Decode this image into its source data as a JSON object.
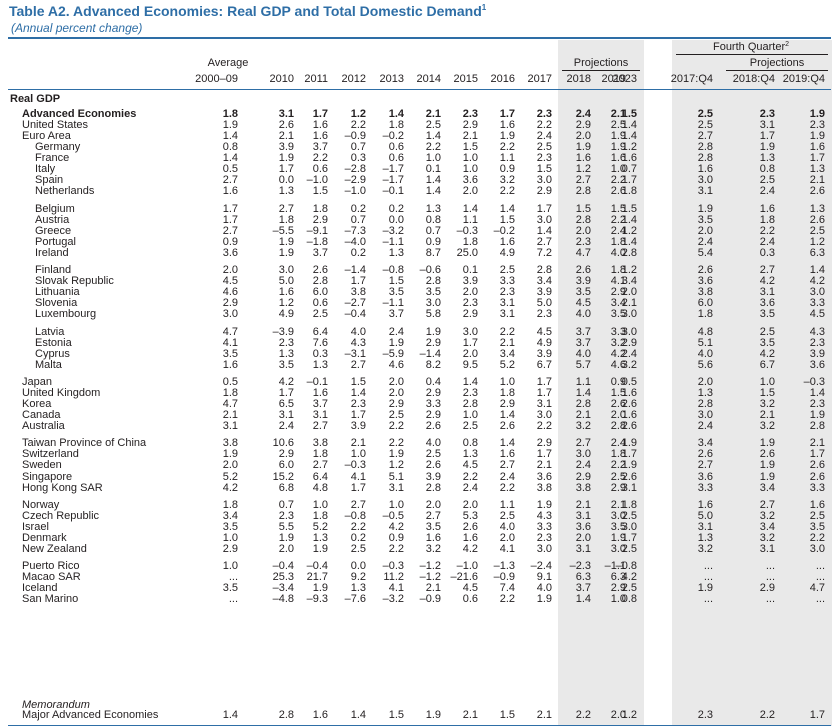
{
  "title": "Table A2. Advanced Economies: Real GDP and Total Domestic Demand",
  "title_note": "1",
  "subtitle": "(Annual percent change)",
  "header": {
    "average_top": "Average",
    "average_bottom": "2000–09",
    "years": [
      "2010",
      "2011",
      "2012",
      "2013",
      "2014",
      "2015",
      "2016",
      "2017"
    ],
    "projections_label": "Projections",
    "proj_years": [
      "2018",
      "2019",
      "2023"
    ],
    "fourth_quarter_label": "Fourth Quarter",
    "fourth_quarter_note": "2",
    "fq_projections_label": "Projections",
    "fq_years": [
      "2017:Q4",
      "2018:Q4",
      "2019:Q4"
    ]
  },
  "section_title": "Real GDP",
  "memorandum_label": "Memorandum",
  "rows": [
    {
      "label": "Advanced Economies",
      "bold": true,
      "values": [
        "1.8",
        "3.1",
        "1.7",
        "1.2",
        "1.4",
        "2.1",
        "2.3",
        "1.7",
        "2.3",
        "2.4",
        "2.1",
        "1.5",
        "2.5",
        "2.3",
        "1.9"
      ]
    },
    {
      "label": "United States",
      "values": [
        "1.9",
        "2.6",
        "1.6",
        "2.2",
        "1.8",
        "2.5",
        "2.9",
        "1.6",
        "2.2",
        "2.9",
        "2.5",
        "1.4",
        "2.5",
        "3.1",
        "2.3"
      ]
    },
    {
      "label": "Euro Area",
      "values": [
        "1.4",
        "2.1",
        "1.6",
        "–0.9",
        "–0.2",
        "1.4",
        "2.1",
        "1.9",
        "2.4",
        "2.0",
        "1.9",
        "1.4",
        "2.7",
        "1.7",
        "1.9"
      ]
    },
    {
      "label": "Germany",
      "indent": true,
      "values": [
        "0.8",
        "3.9",
        "3.7",
        "0.7",
        "0.6",
        "2.2",
        "1.5",
        "2.2",
        "2.5",
        "1.9",
        "1.9",
        "1.2",
        "2.8",
        "1.9",
        "1.6"
      ]
    },
    {
      "label": "France",
      "indent": true,
      "values": [
        "1.4",
        "1.9",
        "2.2",
        "0.3",
        "0.6",
        "1.0",
        "1.0",
        "1.1",
        "2.3",
        "1.6",
        "1.6",
        "1.6",
        "2.8",
        "1.3",
        "1.7"
      ]
    },
    {
      "label": "Italy",
      "indent": true,
      "values": [
        "0.5",
        "1.7",
        "0.6",
        "–2.8",
        "–1.7",
        "0.1",
        "1.0",
        "0.9",
        "1.5",
        "1.2",
        "1.0",
        "0.7",
        "1.6",
        "0.8",
        "1.3"
      ]
    },
    {
      "label": "Spain",
      "indent": true,
      "values": [
        "2.7",
        "0.0",
        "–1.0",
        "–2.9",
        "–1.7",
        "1.4",
        "3.6",
        "3.2",
        "3.0",
        "2.7",
        "2.2",
        "1.7",
        "3.0",
        "2.5",
        "2.1"
      ]
    },
    {
      "label": "Netherlands",
      "indent": true,
      "values": [
        "1.6",
        "1.3",
        "1.5",
        "–1.0",
        "–0.1",
        "1.4",
        "2.0",
        "2.2",
        "2.9",
        "2.8",
        "2.6",
        "1.8",
        "3.1",
        "2.4",
        "2.6"
      ]
    },
    {
      "label": "Belgium",
      "indent": true,
      "gap": true,
      "values": [
        "1.7",
        "2.7",
        "1.8",
        "0.2",
        "0.2",
        "1.3",
        "1.4",
        "1.4",
        "1.7",
        "1.5",
        "1.5",
        "1.5",
        "1.9",
        "1.6",
        "1.3"
      ]
    },
    {
      "label": "Austria",
      "indent": true,
      "values": [
        "1.7",
        "1.8",
        "2.9",
        "0.7",
        "0.0",
        "0.8",
        "1.1",
        "1.5",
        "3.0",
        "2.8",
        "2.2",
        "1.4",
        "3.5",
        "1.8",
        "2.6"
      ]
    },
    {
      "label": "Greece",
      "indent": true,
      "values": [
        "2.7",
        "–5.5",
        "–9.1",
        "–7.3",
        "–3.2",
        "0.7",
        "–0.3",
        "–0.2",
        "1.4",
        "2.0",
        "2.4",
        "1.2",
        "2.0",
        "2.2",
        "2.5"
      ]
    },
    {
      "label": "Portugal",
      "indent": true,
      "values": [
        "0.9",
        "1.9",
        "–1.8",
        "–4.0",
        "–1.1",
        "0.9",
        "1.8",
        "1.6",
        "2.7",
        "2.3",
        "1.8",
        "1.4",
        "2.4",
        "2.4",
        "1.2"
      ]
    },
    {
      "label": "Ireland",
      "indent": true,
      "values": [
        "3.6",
        "1.9",
        "3.7",
        "0.2",
        "1.3",
        "8.7",
        "25.0",
        "4.9",
        "7.2",
        "4.7",
        "4.0",
        "2.8",
        "5.4",
        "0.3",
        "6.3"
      ]
    },
    {
      "label": "Finland",
      "indent": true,
      "gap": true,
      "values": [
        "2.0",
        "3.0",
        "2.6",
        "–1.4",
        "–0.8",
        "–0.6",
        "0.1",
        "2.5",
        "2.8",
        "2.6",
        "1.8",
        "1.2",
        "2.6",
        "2.7",
        "1.4"
      ]
    },
    {
      "label": "Slovak Republic",
      "indent": true,
      "values": [
        "4.5",
        "5.0",
        "2.8",
        "1.7",
        "1.5",
        "2.8",
        "3.9",
        "3.3",
        "3.4",
        "3.9",
        "4.1",
        "3.4",
        "3.6",
        "4.2",
        "4.2"
      ]
    },
    {
      "label": "Lithuania",
      "indent": true,
      "values": [
        "4.6",
        "1.6",
        "6.0",
        "3.8",
        "3.5",
        "3.5",
        "2.0",
        "2.3",
        "3.9",
        "3.5",
        "2.9",
        "2.0",
        "3.8",
        "3.1",
        "3.0"
      ]
    },
    {
      "label": "Slovenia",
      "indent": true,
      "values": [
        "2.9",
        "1.2",
        "0.6",
        "–2.7",
        "–1.1",
        "3.0",
        "2.3",
        "3.1",
        "5.0",
        "4.5",
        "3.4",
        "2.1",
        "6.0",
        "3.6",
        "3.3"
      ]
    },
    {
      "label": "Luxembourg",
      "indent": true,
      "values": [
        "3.0",
        "4.9",
        "2.5",
        "–0.4",
        "3.7",
        "5.8",
        "2.9",
        "3.1",
        "2.3",
        "4.0",
        "3.5",
        "3.0",
        "1.8",
        "3.5",
        "4.5"
      ]
    },
    {
      "label": "Latvia",
      "indent": true,
      "gap": true,
      "values": [
        "4.7",
        "–3.9",
        "6.4",
        "4.0",
        "2.4",
        "1.9",
        "3.0",
        "2.2",
        "4.5",
        "3.7",
        "3.3",
        "3.0",
        "4.8",
        "2.5",
        "4.3"
      ]
    },
    {
      "label": "Estonia",
      "indent": true,
      "values": [
        "4.1",
        "2.3",
        "7.6",
        "4.3",
        "1.9",
        "2.9",
        "1.7",
        "2.1",
        "4.9",
        "3.7",
        "3.2",
        "2.9",
        "5.1",
        "3.5",
        "2.3"
      ]
    },
    {
      "label": "Cyprus",
      "indent": true,
      "values": [
        "3.5",
        "1.3",
        "0.3",
        "–3.1",
        "–5.9",
        "–1.4",
        "2.0",
        "3.4",
        "3.9",
        "4.0",
        "4.2",
        "2.4",
        "4.0",
        "4.2",
        "3.9"
      ]
    },
    {
      "label": "Malta",
      "indent": true,
      "values": [
        "1.6",
        "3.5",
        "1.3",
        "2.7",
        "4.6",
        "8.2",
        "9.5",
        "5.2",
        "6.7",
        "5.7",
        "4.6",
        "3.2",
        "5.6",
        "6.7",
        "3.6"
      ]
    },
    {
      "label": "Japan",
      "gap": true,
      "values": [
        "0.5",
        "4.2",
        "–0.1",
        "1.5",
        "2.0",
        "0.4",
        "1.4",
        "1.0",
        "1.7",
        "1.1",
        "0.9",
        "0.5",
        "2.0",
        "1.0",
        "–0.3"
      ]
    },
    {
      "label": "United Kingdom",
      "values": [
        "1.8",
        "1.7",
        "1.6",
        "1.4",
        "2.0",
        "2.9",
        "2.3",
        "1.8",
        "1.7",
        "1.4",
        "1.5",
        "1.6",
        "1.3",
        "1.5",
        "1.4"
      ]
    },
    {
      "label": "Korea",
      "values": [
        "4.7",
        "6.5",
        "3.7",
        "2.3",
        "2.9",
        "3.3",
        "2.8",
        "2.9",
        "3.1",
        "2.8",
        "2.6",
        "2.6",
        "2.8",
        "3.2",
        "2.3"
      ]
    },
    {
      "label": "Canada",
      "values": [
        "2.1",
        "3.1",
        "3.1",
        "1.7",
        "2.5",
        "2.9",
        "1.0",
        "1.4",
        "3.0",
        "2.1",
        "2.0",
        "1.6",
        "3.0",
        "2.1",
        "1.9"
      ]
    },
    {
      "label": "Australia",
      "values": [
        "3.1",
        "2.4",
        "2.7",
        "3.9",
        "2.2",
        "2.6",
        "2.5",
        "2.6",
        "2.2",
        "3.2",
        "2.8",
        "2.6",
        "2.4",
        "3.2",
        "2.8"
      ]
    },
    {
      "label": "Taiwan Province of China",
      "gap": true,
      "values": [
        "3.8",
        "10.6",
        "3.8",
        "2.1",
        "2.2",
        "4.0",
        "0.8",
        "1.4",
        "2.9",
        "2.7",
        "2.4",
        "1.9",
        "3.4",
        "1.9",
        "2.1"
      ]
    },
    {
      "label": "Switzerland",
      "values": [
        "1.9",
        "2.9",
        "1.8",
        "1.0",
        "1.9",
        "2.5",
        "1.3",
        "1.6",
        "1.7",
        "3.0",
        "1.8",
        "1.7",
        "2.6",
        "2.6",
        "1.7"
      ]
    },
    {
      "label": "Sweden",
      "values": [
        "2.0",
        "6.0",
        "2.7",
        "–0.3",
        "1.2",
        "2.6",
        "4.5",
        "2.7",
        "2.1",
        "2.4",
        "2.2",
        "1.9",
        "2.7",
        "1.9",
        "2.6"
      ]
    },
    {
      "label": "Singapore",
      "values": [
        "5.2",
        "15.2",
        "6.4",
        "4.1",
        "5.1",
        "3.9",
        "2.2",
        "2.4",
        "3.6",
        "2.9",
        "2.5",
        "2.6",
        "3.6",
        "1.9",
        "2.6"
      ]
    },
    {
      "label": "Hong Kong SAR",
      "values": [
        "4.2",
        "6.8",
        "4.8",
        "1.7",
        "3.1",
        "2.8",
        "2.4",
        "2.2",
        "3.8",
        "3.8",
        "2.9",
        "3.1",
        "3.3",
        "3.4",
        "3.3"
      ]
    },
    {
      "label": "Norway",
      "gap": true,
      "values": [
        "1.8",
        "0.7",
        "1.0",
        "2.7",
        "1.0",
        "2.0",
        "2.0",
        "1.1",
        "1.9",
        "2.1",
        "2.1",
        "1.8",
        "1.6",
        "2.7",
        "1.6"
      ]
    },
    {
      "label": "Czech Republic",
      "values": [
        "3.4",
        "2.3",
        "1.8",
        "–0.8",
        "–0.5",
        "2.7",
        "5.3",
        "2.5",
        "4.3",
        "3.1",
        "3.0",
        "2.5",
        "5.0",
        "3.2",
        "2.5"
      ]
    },
    {
      "label": "Israel",
      "values": [
        "3.5",
        "5.5",
        "5.2",
        "2.2",
        "4.2",
        "3.5",
        "2.6",
        "4.0",
        "3.3",
        "3.6",
        "3.5",
        "3.0",
        "3.1",
        "3.4",
        "3.5"
      ]
    },
    {
      "label": "Denmark",
      "values": [
        "1.0",
        "1.9",
        "1.3",
        "0.2",
        "0.9",
        "1.6",
        "1.6",
        "2.0",
        "2.3",
        "2.0",
        "1.9",
        "1.7",
        "1.3",
        "3.2",
        "2.2"
      ]
    },
    {
      "label": "New Zealand",
      "values": [
        "2.9",
        "2.0",
        "1.9",
        "2.5",
        "2.2",
        "3.2",
        "4.2",
        "4.1",
        "3.0",
        "3.1",
        "3.0",
        "2.5",
        "3.2",
        "3.1",
        "3.0"
      ]
    },
    {
      "label": "Puerto Rico",
      "gap": true,
      "values": [
        "1.0",
        "–0.4",
        "–0.4",
        "0.0",
        "–0.3",
        "–1.2",
        "–1.0",
        "–1.3",
        "–2.4",
        "–2.3",
        "–1.1",
        "–0.8",
        "...",
        "...",
        "..."
      ]
    },
    {
      "label": "Macao SAR",
      "values": [
        "...",
        "25.3",
        "21.7",
        "9.2",
        "11.2",
        "–1.2",
        "–21.6",
        "–0.9",
        "9.1",
        "6.3",
        "6.3",
        "4.2",
        "...",
        "...",
        "..."
      ]
    },
    {
      "label": "Iceland",
      "values": [
        "3.5",
        "–3.4",
        "1.9",
        "1.3",
        "4.1",
        "2.1",
        "4.5",
        "7.4",
        "4.0",
        "3.7",
        "2.9",
        "2.5",
        "1.9",
        "2.9",
        "4.7"
      ]
    },
    {
      "label": "San Marino",
      "values": [
        "...",
        "–4.8",
        "–9.3",
        "–7.6",
        "–3.2",
        "–0.9",
        "0.6",
        "2.2",
        "1.9",
        "1.4",
        "1.0",
        "0.8",
        "...",
        "...",
        "..."
      ]
    },
    {
      "label": "Major Advanced Economies",
      "memo": true,
      "values": [
        "1.4",
        "2.8",
        "1.6",
        "1.4",
        "1.5",
        "1.9",
        "2.1",
        "1.5",
        "2.1",
        "2.2",
        "2.0",
        "1.2",
        "2.3",
        "2.2",
        "1.7"
      ]
    }
  ],
  "colors": {
    "title": "#2e6ea6",
    "rule": "#2e6ea6",
    "text": "#231f20",
    "shade": "#e9e9e9"
  }
}
